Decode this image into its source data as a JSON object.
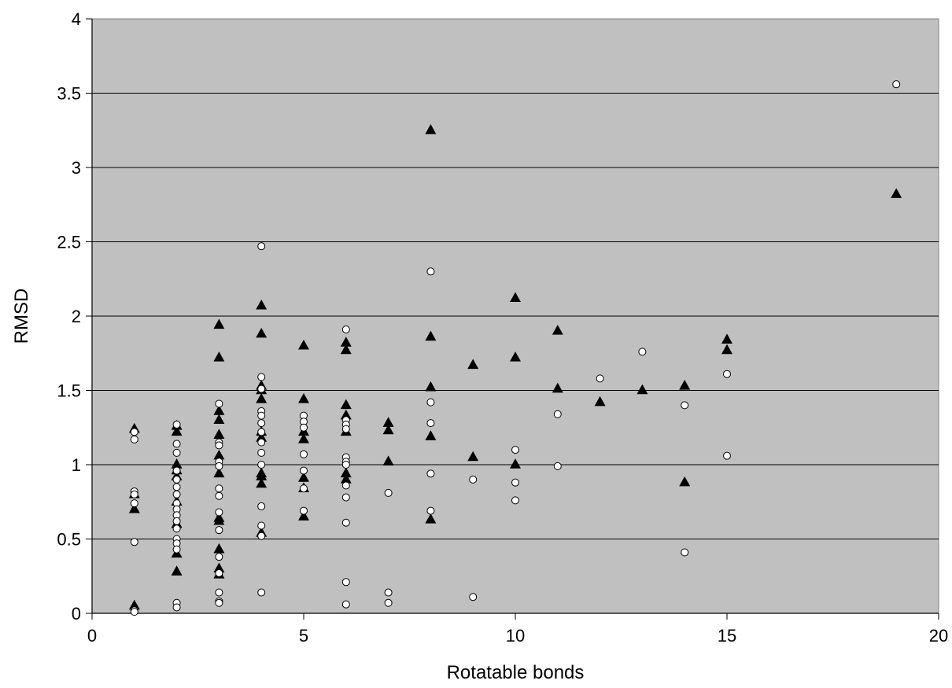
{
  "chart_data": {
    "type": "scatter",
    "title": "",
    "xlabel": "Rotatable bonds",
    "ylabel": "RMSD",
    "xlim": [
      0,
      20
    ],
    "ylim": [
      0,
      4
    ],
    "xticks": [
      0,
      5,
      10,
      15,
      20
    ],
    "yticks": [
      0,
      0.5,
      1,
      1.5,
      2,
      2.5,
      3,
      3.5,
      4
    ],
    "xtick_labels": [
      "0",
      "5",
      "10",
      "15",
      "20"
    ],
    "ytick_labels": [
      "0",
      "0.5",
      "1",
      "1.5",
      "2",
      "2.5",
      "3",
      "3.5",
      "4"
    ],
    "grid": "horizontal",
    "legend": "none",
    "plot_background": "#c0c0c0",
    "series": [
      {
        "marker": "triangle",
        "color": "#000000",
        "points": [
          [
            1,
            1.24
          ],
          [
            1,
            0.8
          ],
          [
            1,
            0.7
          ],
          [
            1,
            0.05
          ],
          [
            2,
            1.26
          ],
          [
            2,
            1.22
          ],
          [
            2,
            1.0
          ],
          [
            2,
            0.96
          ],
          [
            2,
            0.92
          ],
          [
            2,
            0.75
          ],
          [
            2,
            0.6
          ],
          [
            2,
            0.4
          ],
          [
            2,
            0.28
          ],
          [
            3,
            1.94
          ],
          [
            3,
            1.72
          ],
          [
            3,
            1.36
          ],
          [
            3,
            1.3
          ],
          [
            3,
            1.2
          ],
          [
            3,
            1.06
          ],
          [
            3,
            0.94
          ],
          [
            3,
            0.64
          ],
          [
            3,
            0.62
          ],
          [
            3,
            0.43
          ],
          [
            3,
            0.3
          ],
          [
            3,
            0.26
          ],
          [
            4,
            2.07
          ],
          [
            4,
            1.88
          ],
          [
            4,
            1.53
          ],
          [
            4,
            1.5
          ],
          [
            4,
            1.44
          ],
          [
            4,
            1.22
          ],
          [
            4,
            1.18
          ],
          [
            4,
            0.94
          ],
          [
            4,
            0.92
          ],
          [
            4,
            0.87
          ],
          [
            4,
            0.54
          ],
          [
            5,
            1.8
          ],
          [
            5,
            1.44
          ],
          [
            5,
            1.22
          ],
          [
            5,
            1.17
          ],
          [
            5,
            0.91
          ],
          [
            5,
            0.84
          ],
          [
            5,
            0.65
          ],
          [
            6,
            1.82
          ],
          [
            6,
            1.77
          ],
          [
            6,
            1.4
          ],
          [
            6,
            1.33
          ],
          [
            6,
            1.22
          ],
          [
            6,
            0.94
          ],
          [
            6,
            0.9
          ],
          [
            7,
            1.28
          ],
          [
            7,
            1.23
          ],
          [
            7,
            1.02
          ],
          [
            8,
            3.25
          ],
          [
            8,
            1.86
          ],
          [
            8,
            1.52
          ],
          [
            8,
            1.19
          ],
          [
            8,
            0.63
          ],
          [
            9,
            1.67
          ],
          [
            9,
            1.05
          ],
          [
            10,
            2.12
          ],
          [
            10,
            1.72
          ],
          [
            10,
            1.0
          ],
          [
            11,
            1.9
          ],
          [
            11,
            1.51
          ],
          [
            12,
            1.42
          ],
          [
            13,
            1.5
          ],
          [
            14,
            1.53
          ],
          [
            14,
            0.88
          ],
          [
            15,
            1.84
          ],
          [
            15,
            1.77
          ],
          [
            19,
            2.82
          ]
        ]
      },
      {
        "marker": "circle",
        "color": "#ffffff",
        "points": [
          [
            1,
            1.22
          ],
          [
            1,
            1.17
          ],
          [
            1,
            0.82
          ],
          [
            1,
            0.8
          ],
          [
            1,
            0.74
          ],
          [
            1,
            0.48
          ],
          [
            1,
            0.02
          ],
          [
            1,
            0.01
          ],
          [
            2,
            1.27
          ],
          [
            2,
            1.14
          ],
          [
            2,
            1.08
          ],
          [
            2,
            0.96
          ],
          [
            2,
            0.9
          ],
          [
            2,
            0.85
          ],
          [
            2,
            0.8
          ],
          [
            2,
            0.74
          ],
          [
            2,
            0.7
          ],
          [
            2,
            0.66
          ],
          [
            2,
            0.62
          ],
          [
            2,
            0.57
          ],
          [
            2,
            0.5
          ],
          [
            2,
            0.47
          ],
          [
            2,
            0.43
          ],
          [
            2,
            0.07
          ],
          [
            2,
            0.04
          ],
          [
            3,
            1.41
          ],
          [
            3,
            1.15
          ],
          [
            3,
            1.13
          ],
          [
            3,
            1.02
          ],
          [
            3,
            0.99
          ],
          [
            3,
            0.84
          ],
          [
            3,
            0.79
          ],
          [
            3,
            0.68
          ],
          [
            3,
            0.56
          ],
          [
            3,
            0.38
          ],
          [
            3,
            0.27
          ],
          [
            3,
            0.14
          ],
          [
            3,
            0.08
          ],
          [
            3,
            0.07
          ],
          [
            4,
            2.47
          ],
          [
            4,
            1.59
          ],
          [
            4,
            1.51
          ],
          [
            4,
            1.36
          ],
          [
            4,
            1.33
          ],
          [
            4,
            1.28
          ],
          [
            4,
            1.22
          ],
          [
            4,
            1.15
          ],
          [
            4,
            1.08
          ],
          [
            4,
            1.0
          ],
          [
            4,
            0.72
          ],
          [
            4,
            0.59
          ],
          [
            4,
            0.52
          ],
          [
            4,
            0.14
          ],
          [
            5,
            1.33
          ],
          [
            5,
            1.29
          ],
          [
            5,
            1.25
          ],
          [
            5,
            1.07
          ],
          [
            5,
            0.96
          ],
          [
            5,
            0.84
          ],
          [
            5,
            0.69
          ],
          [
            6,
            1.91
          ],
          [
            6,
            1.3
          ],
          [
            6,
            1.27
          ],
          [
            6,
            1.24
          ],
          [
            6,
            1.05
          ],
          [
            6,
            1.02
          ],
          [
            6,
            1.0
          ],
          [
            6,
            0.86
          ],
          [
            6,
            0.78
          ],
          [
            6,
            0.61
          ],
          [
            6,
            0.21
          ],
          [
            6,
            0.06
          ],
          [
            7,
            0.81
          ],
          [
            7,
            0.14
          ],
          [
            7,
            0.07
          ],
          [
            8,
            2.3
          ],
          [
            8,
            1.42
          ],
          [
            8,
            1.28
          ],
          [
            8,
            0.94
          ],
          [
            8,
            0.69
          ],
          [
            9,
            0.9
          ],
          [
            9,
            0.11
          ],
          [
            10,
            1.1
          ],
          [
            10,
            0.88
          ],
          [
            10,
            0.76
          ],
          [
            11,
            1.34
          ],
          [
            11,
            0.99
          ],
          [
            12,
            1.58
          ],
          [
            13,
            1.76
          ],
          [
            14,
            1.4
          ],
          [
            14,
            0.41
          ],
          [
            15,
            1.61
          ],
          [
            15,
            1.06
          ],
          [
            19,
            3.56
          ]
        ]
      }
    ]
  }
}
